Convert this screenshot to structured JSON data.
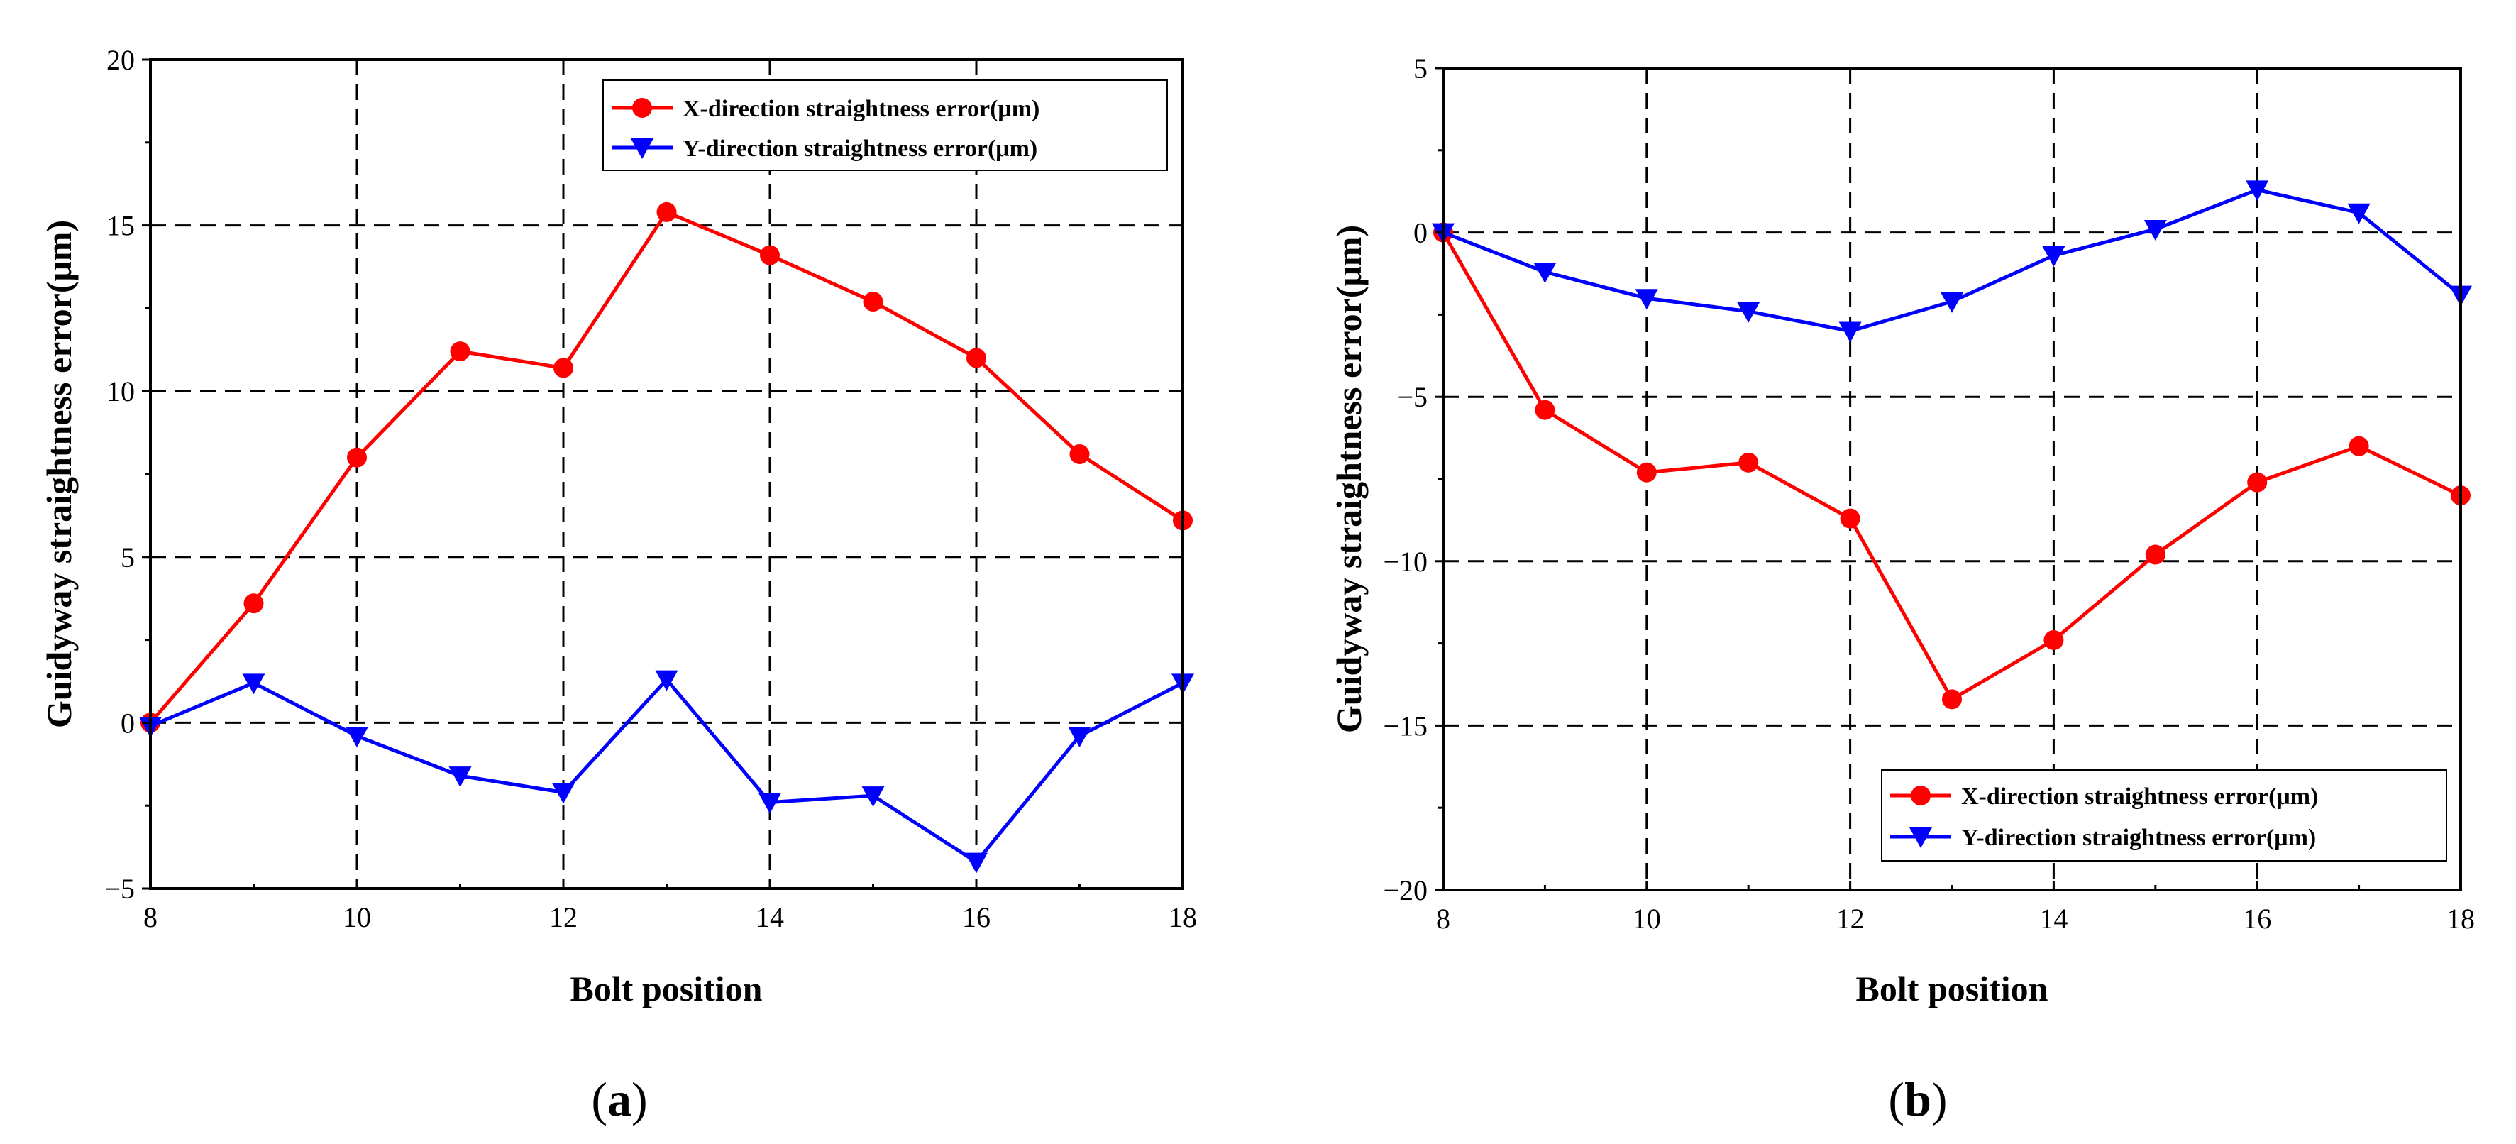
{
  "chart_data": [
    {
      "panel": "a",
      "panel_label": "a",
      "type": "line",
      "xlabel": "Bolt position",
      "ylabel": "Guidyway straightness error(μm)",
      "xlim": [
        8,
        18
      ],
      "ylim": [
        -5,
        20
      ],
      "xticks": [
        8,
        10,
        12,
        14,
        16,
        18
      ],
      "yticks": [
        -5,
        0,
        5,
        10,
        15,
        20
      ],
      "ytick_labels": [
        "−5",
        "0",
        "5",
        "10",
        "15",
        "20"
      ],
      "grid": "dashed",
      "legend_position": "top-right",
      "x": [
        8,
        9,
        10,
        11,
        12,
        13,
        14,
        15,
        16,
        17,
        18
      ],
      "series": [
        {
          "name": "X-direction straightness error(μm)",
          "color": "#ff0000",
          "marker": "circle",
          "values": [
            0,
            3.6,
            8.0,
            11.2,
            10.7,
            15.4,
            14.1,
            12.7,
            11.0,
            8.1,
            6.1
          ]
        },
        {
          "name": "Y-direction straightness error(μm)",
          "color": "#0000ff",
          "marker": "triangle-down",
          "values": [
            -0.1,
            1.2,
            -0.4,
            -1.6,
            -2.1,
            1.3,
            -2.4,
            -2.2,
            -4.2,
            -0.4,
            1.2
          ]
        }
      ]
    },
    {
      "panel": "b",
      "panel_label": "b",
      "type": "line",
      "xlabel": "Bolt position",
      "ylabel": "Guidyway straightness error(μm)",
      "xlim": [
        8,
        18
      ],
      "ylim": [
        -20,
        5
      ],
      "xticks": [
        8,
        10,
        12,
        14,
        16,
        18
      ],
      "yticks": [
        -20,
        -15,
        -10,
        -5,
        0,
        5
      ],
      "ytick_labels": [
        "−20",
        "−15",
        "−10",
        "−5",
        "0",
        "5"
      ],
      "grid": "dashed",
      "legend_position": "bottom-right",
      "x": [
        8,
        9,
        10,
        11,
        12,
        13,
        14,
        15,
        16,
        17,
        18
      ],
      "series": [
        {
          "name": "X-direction straightness error(μm)",
          "color": "#ff0000",
          "marker": "circle",
          "values": [
            0,
            -5.4,
            -7.3,
            -7.0,
            -8.7,
            -14.2,
            -12.4,
            -9.8,
            -7.6,
            -6.5,
            -8.0
          ]
        },
        {
          "name": "Y-direction straightness error(μm)",
          "color": "#0000ff",
          "marker": "triangle-down",
          "values": [
            0,
            -1.2,
            -2.0,
            -2.4,
            -3.0,
            -2.1,
            -0.7,
            0.1,
            1.3,
            0.6,
            -1.9
          ]
        }
      ]
    }
  ]
}
